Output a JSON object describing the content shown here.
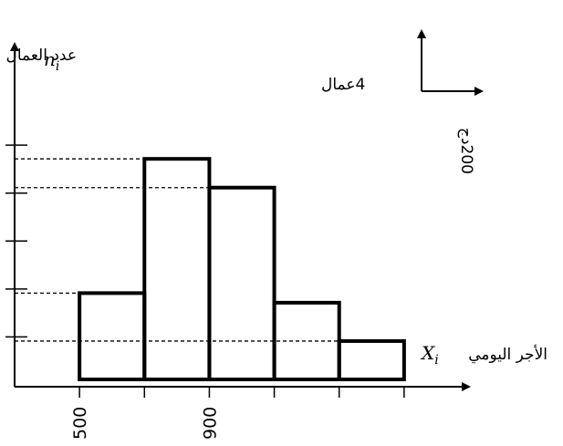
{
  "chart_data": {
    "type": "bar",
    "subtype": "histogram",
    "title": "",
    "ylabel": "عدد العمال",
    "ylabel_symbol": "n",
    "ylabel_subscript": "i",
    "xlabel": "الأجر اليومي",
    "xlabel_symbol": "X",
    "xlabel_subscript": "i",
    "bin_edges": [
      500,
      700,
      900,
      1100,
      1300,
      1500
    ],
    "values": [
      18,
      46,
      40,
      16,
      8
    ],
    "x_tick_labels": [
      "500",
      "900"
    ],
    "y_tick_values": [
      10,
      20,
      30,
      40,
      50
    ],
    "dashed_levels": [
      8,
      18,
      20,
      40,
      46
    ],
    "xlim": [
      300,
      1700
    ],
    "ylim": [
      0,
      70
    ],
    "scale_x_label": "200دج",
    "scale_y_label": "4عمال",
    "grid": false,
    "legend": "none"
  }
}
